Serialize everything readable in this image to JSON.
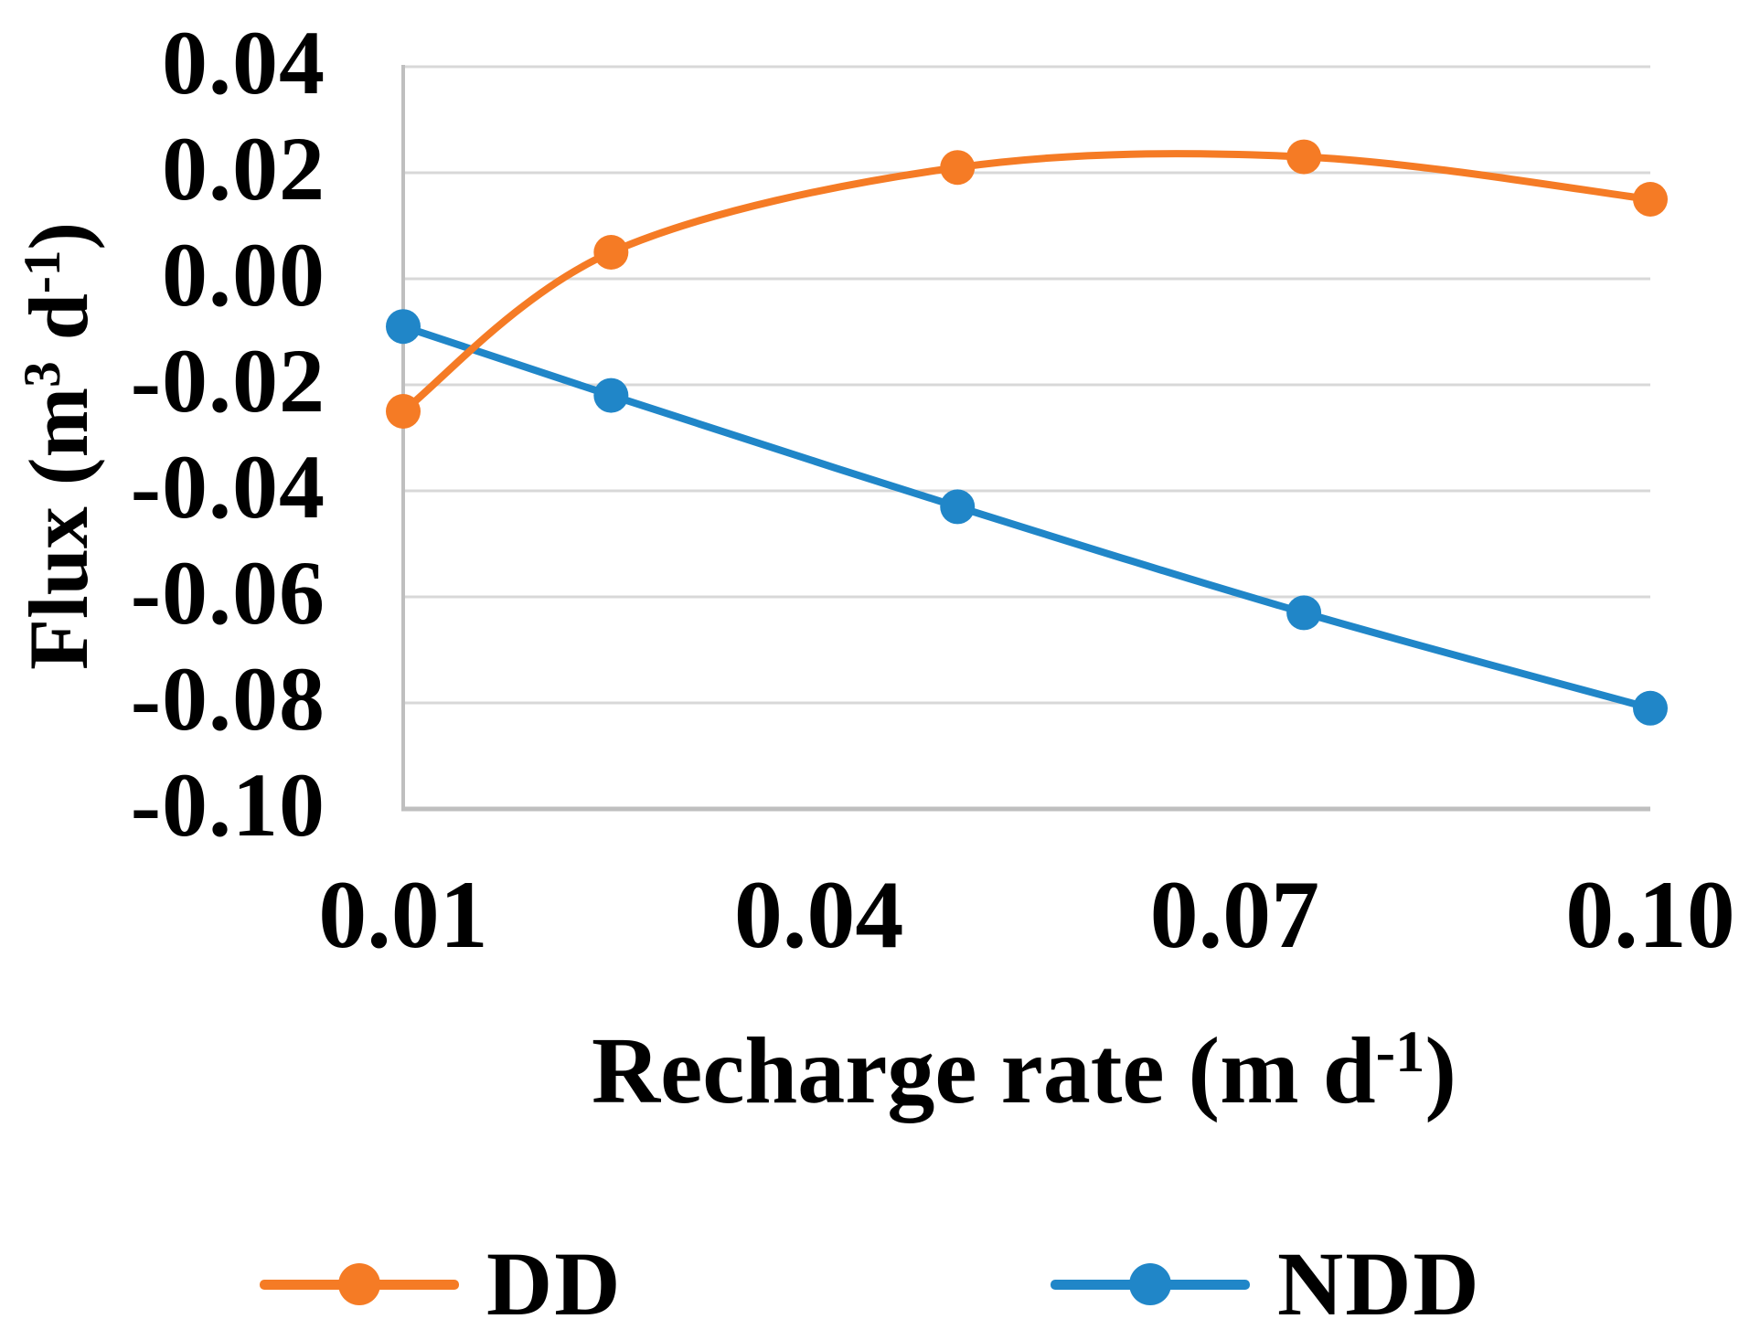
{
  "figure": {
    "background_color": "#FFFFFF",
    "text_color": "#000000"
  },
  "chart_data": {
    "type": "line",
    "x": [
      0.01,
      0.025,
      0.05,
      0.075,
      0.1
    ],
    "series": [
      {
        "name": "DD",
        "color": "#F57B25",
        "smooth": true,
        "values": [
          -0.025,
          0.005,
          0.021,
          0.023,
          0.015
        ]
      },
      {
        "name": "NDD",
        "color": "#2086C8",
        "smooth": true,
        "values": [
          -0.009,
          -0.022,
          -0.043,
          -0.063,
          -0.081
        ]
      }
    ],
    "xlabel": "Recharge rate (m d⁻¹)",
    "ylabel": "Flux (m³ d⁻¹)",
    "xlim": [
      0.01,
      0.1
    ],
    "ylim": [
      -0.1,
      0.04
    ],
    "x_ticks": [
      0.01,
      0.04,
      0.07,
      0.1
    ],
    "x_tick_labels": [
      "0.01",
      "0.04",
      "0.07",
      "0.10"
    ],
    "y_ticks": [
      0.04,
      0.02,
      0.0,
      -0.02,
      -0.04,
      -0.06,
      -0.08,
      -0.1
    ],
    "y_tick_labels": [
      "0.04",
      "0.02",
      "0.00",
      "-0.02",
      "-0.04",
      "-0.06",
      "-0.08",
      "-0.10"
    ],
    "grid": "horizontal",
    "gridline_color": "#D8D8D8",
    "axis_line_color": "#BFBFBF",
    "marker": "circle",
    "marker_radius": 19,
    "line_width": 8,
    "legend_position": "bottom",
    "legend": [
      "DD",
      "NDD"
    ]
  },
  "ylabel_parts": {
    "pre": "Flux (m",
    "sup1": "3",
    "mid": " d",
    "sup2": "-1",
    "post": ")"
  },
  "xlabel_parts": {
    "pre": "Recharge rate (m d",
    "sup": "-1",
    "post": ")"
  }
}
